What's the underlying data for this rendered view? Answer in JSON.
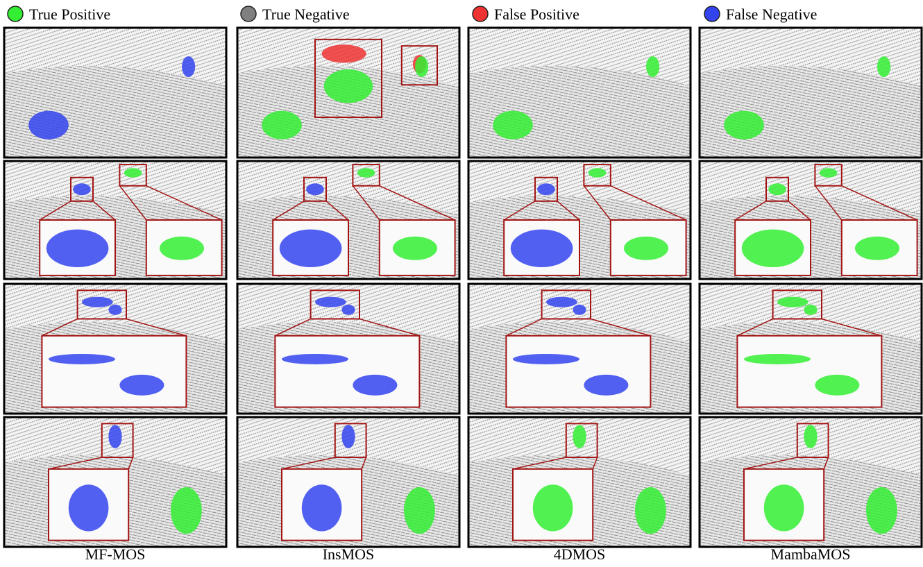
{
  "legend": [
    {
      "label": "True Positive",
      "color": "#33ee33"
    },
    {
      "label": "True Negative",
      "color": "#808080"
    },
    {
      "label": "False Positive",
      "color": "#ee3333"
    },
    {
      "label": "False Negative",
      "color": "#3344ee"
    }
  ],
  "columns": [
    "MF-MOS",
    "InsMOS",
    "4DMOS",
    "MambaMOS"
  ]
}
